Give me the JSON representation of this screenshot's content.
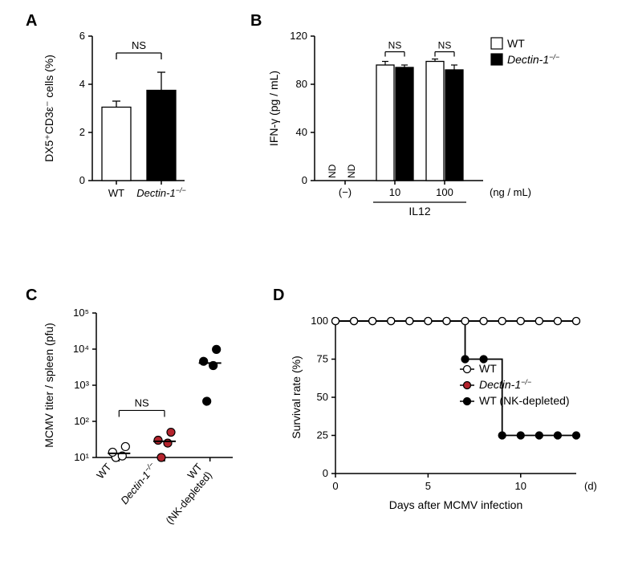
{
  "panels": {
    "A": "A",
    "B": "B",
    "C": "C",
    "D": "D"
  },
  "A": {
    "type": "bar",
    "ylabel": "DX5⁺CD3ε⁻ cells (%)",
    "ylim": [
      0,
      6
    ],
    "yticks": [
      0,
      2,
      4,
      6
    ],
    "categories": [
      "WT",
      "Dectin-1"
    ],
    "ko_suffix": "−/−",
    "values": [
      3.05,
      3.75
    ],
    "errors": [
      0.25,
      0.75
    ],
    "bar_colors": [
      "#ffffff",
      "#000000"
    ],
    "bar_stroke": "#000000",
    "ns": "NS",
    "axis_fontsize": 14,
    "tick_fontsize": 13
  },
  "B": {
    "type": "bar",
    "ylabel": "IFN-γ (pg / mL)",
    "ylim": [
      0,
      120
    ],
    "yticks": [
      0,
      40,
      80,
      120
    ],
    "groups": [
      "(−)",
      "10",
      "100"
    ],
    "xlabel_unit": "(ng / mL)",
    "xlabel_underline": "IL12",
    "legend": {
      "wt": "WT",
      "ko": "Dectin-1",
      "ko_suffix": "−/−"
    },
    "legend_colors": {
      "wt": "#ffffff",
      "ko": "#000000"
    },
    "values_wt": [
      0,
      96,
      99
    ],
    "values_ko": [
      0,
      94,
      92
    ],
    "errors_wt": [
      0,
      3,
      2
    ],
    "errors_ko": [
      0,
      2,
      4
    ],
    "nd": "ND",
    "ns": "NS",
    "bar_stroke": "#000000"
  },
  "C": {
    "type": "scatter_log",
    "ylabel": "MCMV titer / spleen (pfu)",
    "yticks": [
      10,
      100,
      1000,
      10000,
      100000
    ],
    "ytick_labels": [
      "10¹",
      "10²",
      "10³",
      "10⁴",
      "10⁵"
    ],
    "categories": [
      "WT",
      "Dectin-1",
      "WT\n(NK-depleted)"
    ],
    "ko_suffix": "−/−",
    "points": {
      "WT": [
        10,
        11,
        14,
        20
      ],
      "Dectin-1": [
        10,
        25,
        30,
        50
      ],
      "WT_NKdep": [
        360,
        3500,
        4600,
        9800
      ]
    },
    "medians": {
      "WT": 13,
      "Dectin-1": 28,
      "WT_NKdep": 4100
    },
    "colors": {
      "WT": "#ffffff",
      "Dectin-1": "#b4242d",
      "WT_NKdep": "#000000"
    },
    "marker_stroke": "#000000",
    "marker_size": 10,
    "ns": "NS"
  },
  "D": {
    "type": "survival",
    "ylabel": "Survival rate (%)",
    "xlabel": "Days after MCMV infection",
    "xunit": "(d)",
    "xlim": [
      0,
      13
    ],
    "xticks": [
      0,
      5,
      10
    ],
    "ylim": [
      0,
      100
    ],
    "yticks": [
      0,
      25,
      50,
      75,
      100
    ],
    "legend": [
      {
        "label": "WT",
        "color": "#ffffff",
        "stroke": "#000000"
      },
      {
        "label": "Dectin-1",
        "suffix": "−/−",
        "color": "#b4242d",
        "stroke": "#000000"
      },
      {
        "label": "WT (NK-depleted)",
        "color": "#000000",
        "stroke": "#000000"
      }
    ],
    "series": {
      "WT": [
        [
          0,
          100
        ],
        [
          1,
          100
        ],
        [
          2,
          100
        ],
        [
          3,
          100
        ],
        [
          4,
          100
        ],
        [
          5,
          100
        ],
        [
          6,
          100
        ],
        [
          7,
          100
        ],
        [
          8,
          100
        ],
        [
          9,
          100
        ],
        [
          10,
          100
        ],
        [
          11,
          100
        ],
        [
          12,
          100
        ],
        [
          13,
          100
        ]
      ],
      "KO": [
        [
          0,
          100
        ],
        [
          1,
          100
        ],
        [
          2,
          100
        ],
        [
          3,
          100
        ],
        [
          4,
          100
        ],
        [
          5,
          100
        ],
        [
          6,
          100
        ],
        [
          7,
          100
        ],
        [
          8,
          100
        ],
        [
          9,
          100
        ],
        [
          10,
          100
        ],
        [
          11,
          100
        ],
        [
          12,
          100
        ],
        [
          13,
          100
        ]
      ],
      "NK": [
        [
          0,
          100
        ],
        [
          1,
          100
        ],
        [
          2,
          100
        ],
        [
          3,
          100
        ],
        [
          4,
          100
        ],
        [
          5,
          100
        ],
        [
          6,
          100
        ],
        [
          7,
          100
        ],
        [
          7,
          75
        ],
        [
          8,
          75
        ],
        [
          9,
          75
        ],
        [
          9,
          25
        ],
        [
          10,
          25
        ],
        [
          11,
          25
        ],
        [
          12,
          25
        ],
        [
          13,
          25
        ]
      ]
    },
    "marker_size": 9
  },
  "colors": {
    "axis": "#000000",
    "text": "#000000"
  }
}
